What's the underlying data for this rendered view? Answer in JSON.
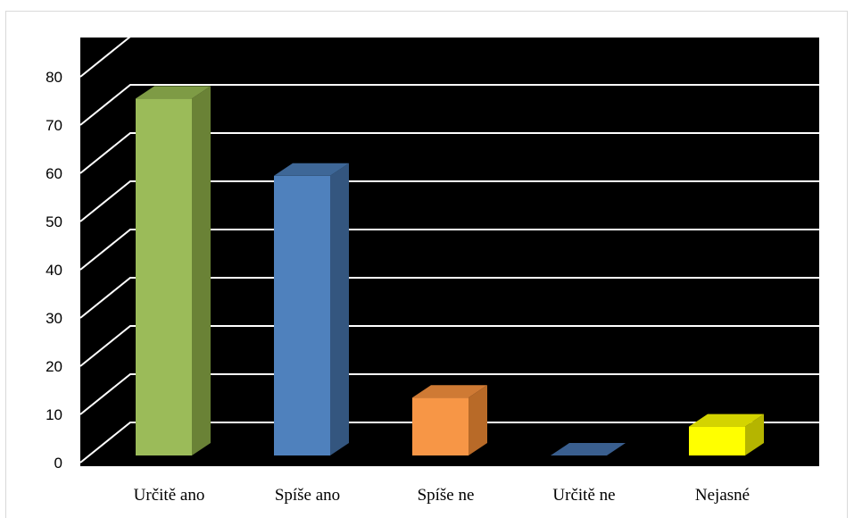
{
  "chart_data": {
    "type": "bar",
    "style": "3d-column",
    "categories": [
      "Určitě ano",
      "Spíše ano",
      "Spíše ne",
      "Určitě ne",
      "Nejasné"
    ],
    "values": [
      74,
      58,
      12,
      0,
      6
    ],
    "colors": [
      "#9bbb59",
      "#4f81bd",
      "#f79646",
      "#4f81bd",
      "#ffff00"
    ],
    "side_colors": [
      "#6a8236",
      "#34567f",
      "#b86a28",
      "#2c4a70",
      "#b5b500"
    ],
    "top_colors": [
      "#7e9b45",
      "#3e6797",
      "#cf7a34",
      "#3a5f8f",
      "#d4d400"
    ],
    "yticks": [
      0,
      10,
      20,
      30,
      40,
      50,
      60,
      70,
      80
    ],
    "ylim": [
      0,
      80
    ],
    "plot_background": "#000000",
    "gridline_color": "#ffffff",
    "grid": true,
    "legend": "none",
    "title": "",
    "xlabel": "",
    "ylabel": ""
  }
}
